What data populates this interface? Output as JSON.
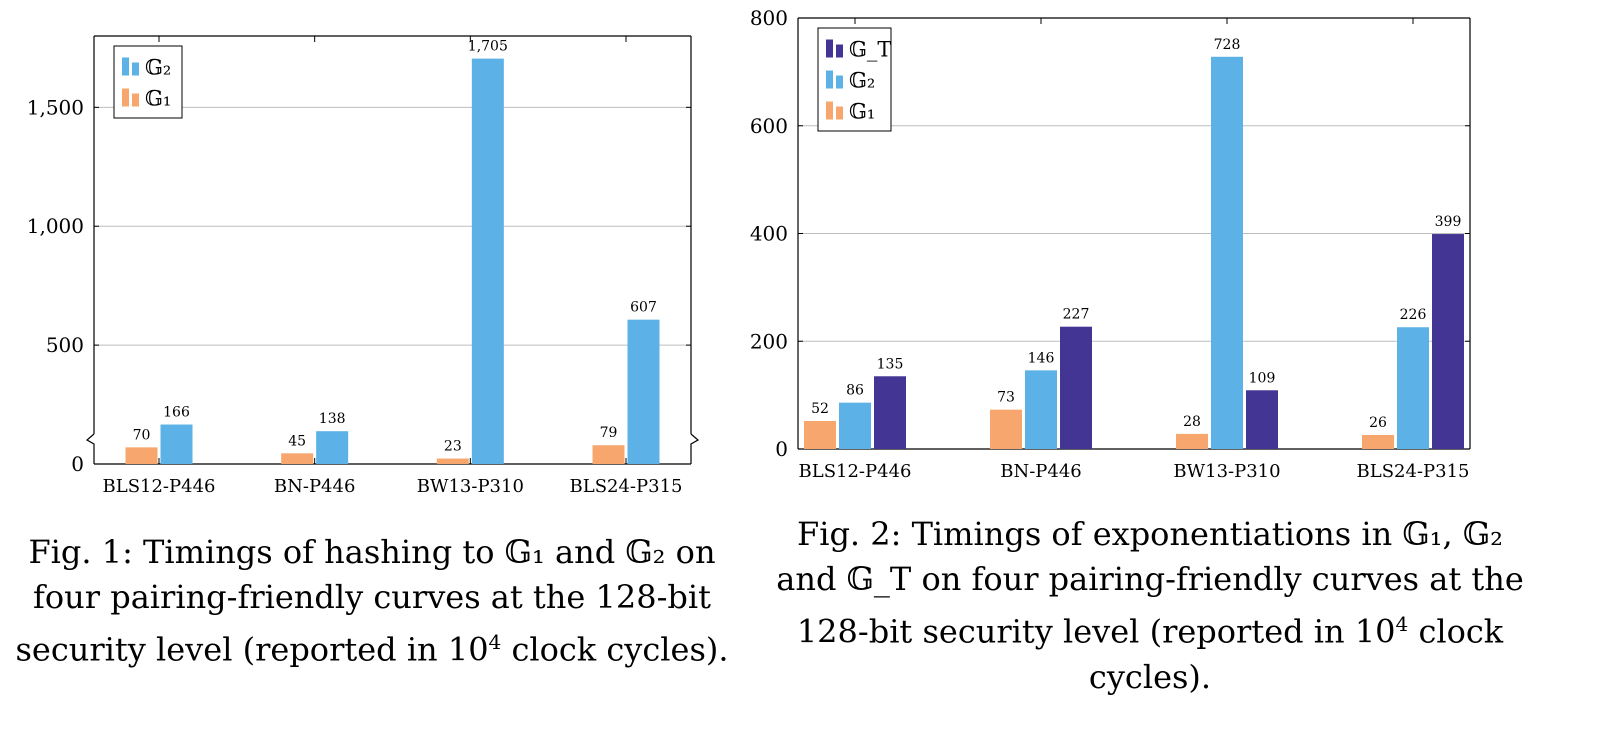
{
  "chart_data": [
    {
      "type": "bar",
      "categories": [
        "BLS12-P446",
        "BN-P446",
        "BW13-P310",
        "BLS24-P315"
      ],
      "series": [
        {
          "name": "𝔾₁",
          "values": [
            70,
            45,
            23,
            79
          ]
        },
        {
          "name": "𝔾₂",
          "values": [
            166,
            138,
            1705,
            607
          ]
        }
      ],
      "data_labels": [
        [
          "70",
          "45",
          "23",
          "79"
        ],
        [
          "166",
          "138",
          "1,705",
          "607"
        ]
      ],
      "yticks": [
        0,
        500,
        1000,
        1500
      ],
      "ytick_labels": [
        "0",
        "500",
        "1,000",
        "1,500"
      ],
      "ylim": [
        0,
        1800
      ],
      "axis_break": true,
      "grid": true,
      "legend_position": "top-left",
      "colors": [
        "#f7a76e",
        "#5cb2e6"
      ]
    },
    {
      "type": "bar",
      "categories": [
        "BLS12-P446",
        "BN-P446",
        "BW13-P310",
        "BLS24-P315"
      ],
      "series": [
        {
          "name": "𝔾₁",
          "values": [
            52,
            73,
            28,
            26
          ]
        },
        {
          "name": "𝔾₂",
          "values": [
            86,
            146,
            728,
            226
          ]
        },
        {
          "name": "𝔾_T",
          "values": [
            135,
            227,
            109,
            399
          ]
        }
      ],
      "yticks": [
        0,
        200,
        400,
        600,
        800
      ],
      "ytick_labels": [
        "0",
        "200",
        "400",
        "600",
        "800"
      ],
      "ylim": [
        0,
        800
      ],
      "grid": true,
      "legend_position": "top-left",
      "colors": [
        "#f7a76e",
        "#5cb2e6",
        "#433594"
      ]
    }
  ],
  "captions": {
    "fig1": {
      "line1_a": "Fig. 1: Timings of hashing to ",
      "g1": "𝔾₁",
      "line1_b": " and ",
      "g2": "𝔾₂",
      "line1_c": " on",
      "line2": "four pairing-friendly curves at the 128-bit",
      "line3_a": "security level (reported in 10",
      "sup": "4",
      "line3_b": " clock cycles)."
    },
    "fig2": {
      "line1_a": "Fig. 2: Timings of exponentiations in ",
      "g1": "𝔾₁",
      "comma": ", ",
      "g2": "𝔾₂",
      "line2_a": "and ",
      "gt": "𝔾_T",
      "line2_b": " on four pairing-friendly curves at the",
      "line3_a": "128-bit security level (reported in 10",
      "sup": "4",
      "line3_b": " clock",
      "line4": "cycles)."
    }
  }
}
